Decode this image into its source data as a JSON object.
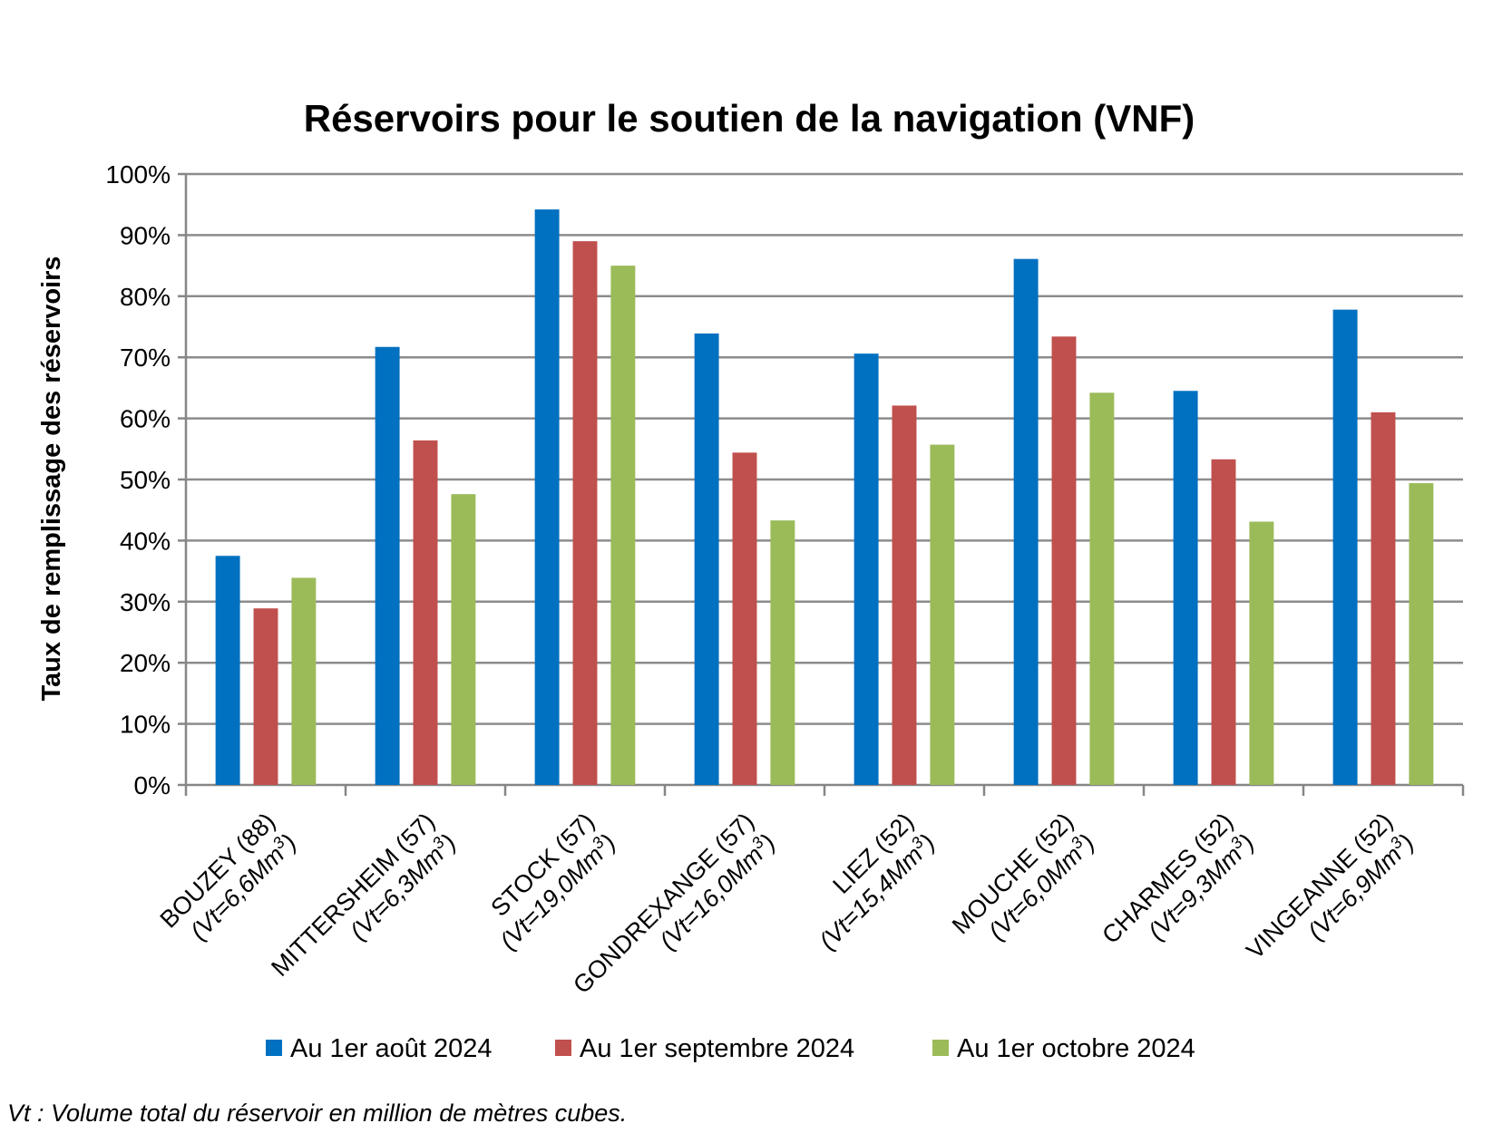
{
  "chart_data": {
    "type": "bar",
    "title": "Réservoirs pour le soutien de la navigation (VNF)",
    "ylabel": "Taux de remplissage des réservoirs",
    "xlabel": "",
    "ylim": [
      0,
      100
    ],
    "yticks": [
      "0%",
      "10%",
      "20%",
      "30%",
      "40%",
      "50%",
      "60%",
      "70%",
      "80%",
      "90%",
      "100%"
    ],
    "categories": [
      {
        "name": "BOUZEY (88)",
        "vol": "(Vt=6,6Mm",
        "sup": "3",
        "close": ")"
      },
      {
        "name": "MITTERSHEIM (57)",
        "vol": "(Vt=6,3Mm",
        "sup": "3",
        "close": ")"
      },
      {
        "name": "STOCK (57)",
        "vol": "(Vt=19,0Mm",
        "sup": "3",
        "close": ")"
      },
      {
        "name": "GONDREXANGE (57)",
        "vol": "(Vt=16,0Mm",
        "sup": "3",
        "close": ")"
      },
      {
        "name": "LIEZ (52)",
        "vol": "(Vt=15,4Mm",
        "sup": "3",
        "close": ")"
      },
      {
        "name": "MOUCHE (52)",
        "vol": "(Vt=6,0Mm",
        "sup": "3",
        "close": ")"
      },
      {
        "name": "CHARMES (52)",
        "vol": "(Vt=9,3Mm",
        "sup": "3",
        "close": ")"
      },
      {
        "name": "VINGEANNE (52)",
        "vol": "(Vt=6,9Mm",
        "sup": "3",
        "close": ")"
      }
    ],
    "series": [
      {
        "name": "Au 1er août 2024",
        "color": "#0070C0",
        "values": [
          37.5,
          71.7,
          94.2,
          73.9,
          70.6,
          86.1,
          64.5,
          77.8
        ]
      },
      {
        "name": "Au 1er septembre 2024",
        "color": "#C0504D",
        "values": [
          28.9,
          56.4,
          89.0,
          54.4,
          62.1,
          73.4,
          53.3,
          61.0
        ]
      },
      {
        "name": "Au 1er octobre 2024",
        "color": "#9BBB59",
        "values": [
          33.9,
          47.6,
          85.0,
          43.3,
          55.7,
          64.2,
          43.1,
          49.4
        ]
      }
    ],
    "grid": true,
    "legend_position": "bottom"
  },
  "footnote": "Vt : Volume total du réservoir en million de mètres cubes."
}
